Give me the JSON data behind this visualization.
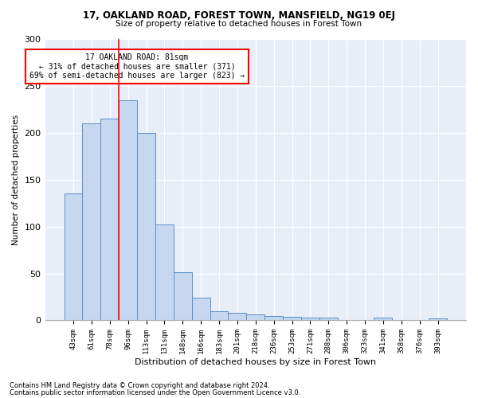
{
  "title1": "17, OAKLAND ROAD, FOREST TOWN, MANSFIELD, NG19 0EJ",
  "title2": "Size of property relative to detached houses in Forest Town",
  "xlabel": "Distribution of detached houses by size in Forest Town",
  "ylabel": "Number of detached properties",
  "categories": [
    "43sqm",
    "61sqm",
    "78sqm",
    "96sqm",
    "113sqm",
    "131sqm",
    "148sqm",
    "166sqm",
    "183sqm",
    "201sqm",
    "218sqm",
    "236sqm",
    "253sqm",
    "271sqm",
    "288sqm",
    "306sqm",
    "323sqm",
    "341sqm",
    "358sqm",
    "376sqm",
    "393sqm"
  ],
  "values": [
    135,
    210,
    215,
    235,
    200,
    102,
    51,
    24,
    10,
    8,
    6,
    5,
    4,
    3,
    3,
    0,
    0,
    3,
    0,
    0,
    2
  ],
  "bar_color": "#c5d8f0",
  "bar_edge_color": "#5a8fc4",
  "red_line_index": 2,
  "annotation_text": "17 OAKLAND ROAD: 81sqm\n← 31% of detached houses are smaller (371)\n69% of semi-detached houses are larger (823) →",
  "annotation_box_color": "white",
  "annotation_box_edge_color": "red",
  "footnote1": "Contains HM Land Registry data © Crown copyright and database right 2024.",
  "footnote2": "Contains public sector information licensed under the Open Government Licence v3.0.",
  "ylim": [
    0,
    300
  ],
  "yticks": [
    0,
    50,
    100,
    150,
    200,
    250,
    300
  ],
  "background_color": "#e8eef8"
}
